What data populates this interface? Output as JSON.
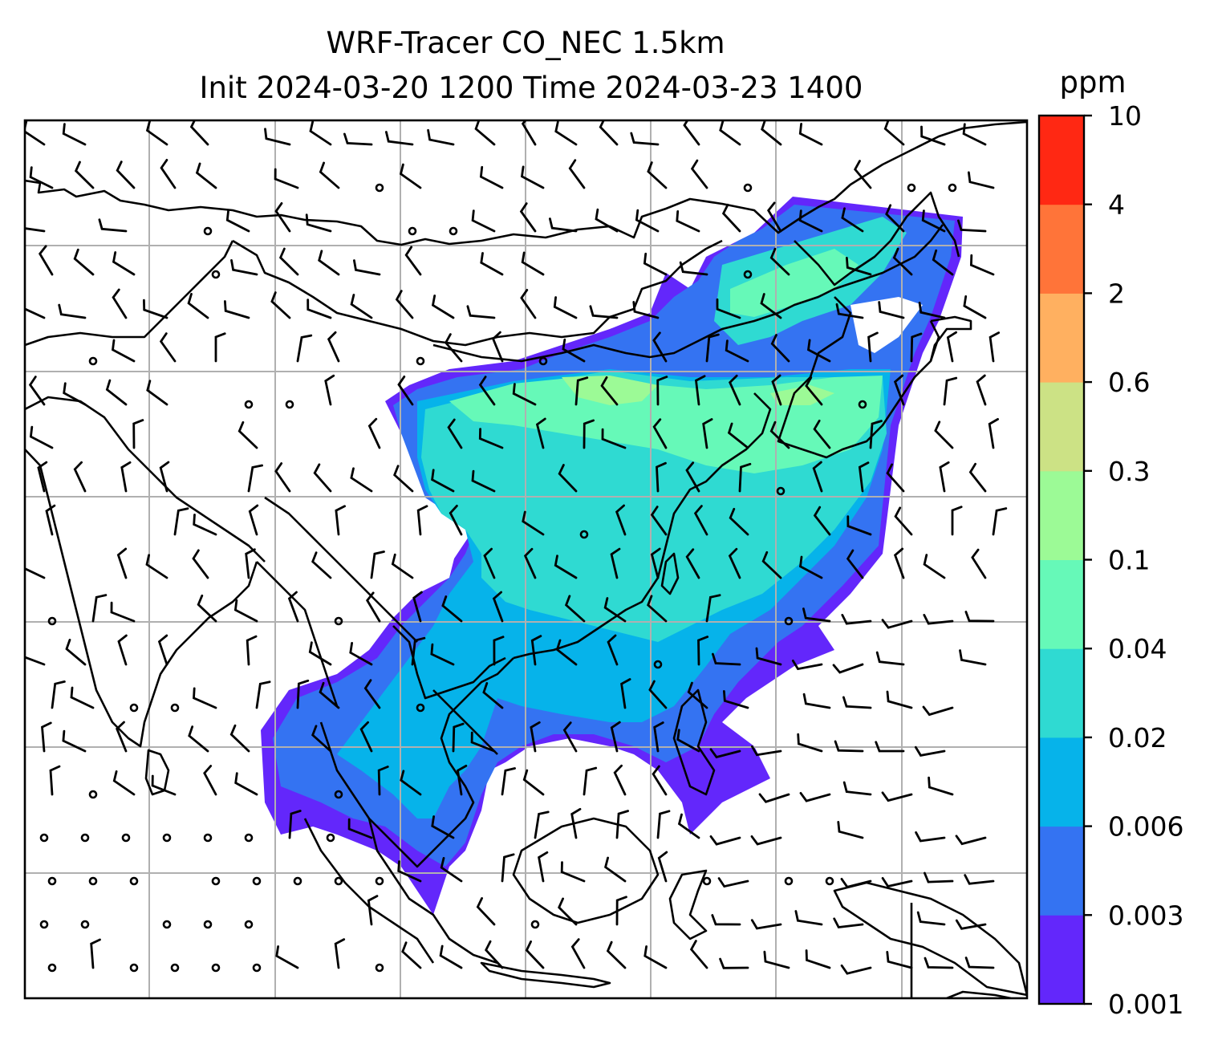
{
  "figure": {
    "title_line1": "WRF-Tracer CO_NEC 1.5km",
    "title_line2": "Init 2024-03-20 1200 Time 2024-03-23 1400"
  },
  "colorbar": {
    "unit_label": "ppm",
    "ticks": [
      "0.001",
      "0.003",
      "0.006",
      "0.02",
      "0.04",
      "0.1",
      "0.3",
      "0.6",
      "2",
      "4",
      "10"
    ],
    "colors": [
      "#6327fb",
      "#3473f2",
      "#06b3ea",
      "#2fdad2",
      "#66f9b8",
      "#9cfa96",
      "#cce285",
      "#ffb060",
      "#ff7439",
      "#ff2813"
    ]
  },
  "map": {
    "gridlines": "on",
    "field_colors": {
      "lowest": "#6327fb",
      "low": "#3473f2",
      "mid": "#06b3ea",
      "midhigh": "#2fdad2",
      "high": "#66f9b8",
      "peak": "#9cfa96"
    },
    "coastline_color": "#000000",
    "grid_color": "#b0b0b0",
    "overlay": "wind barbs"
  }
}
